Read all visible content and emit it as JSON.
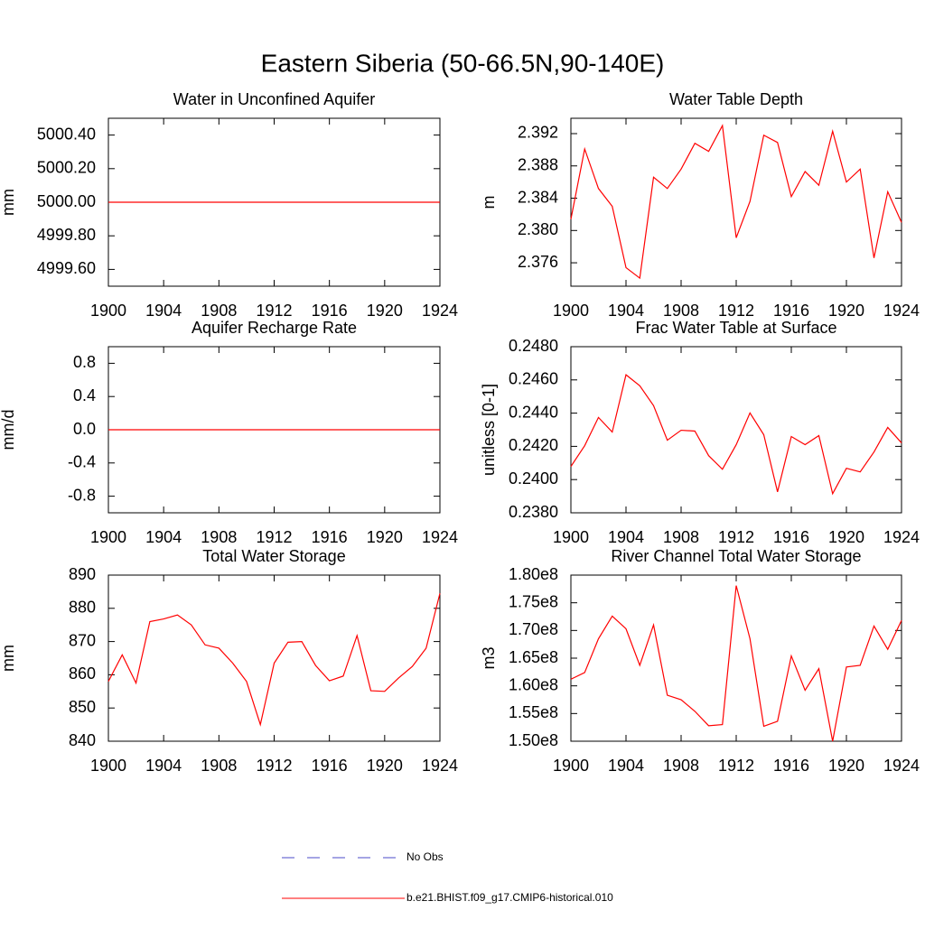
{
  "title": "Eastern Siberia (50-66.5N,90-140E)",
  "legend": [
    {
      "label": "No Obs",
      "color": "#4b4bc8",
      "dash": true
    },
    {
      "label": "b.e21.BHIST.f09_g17.CMIP6-historical.010",
      "color": "#ff0000",
      "dash": false
    }
  ],
  "chart_data": [
    {
      "type": "line",
      "title": "Water in Unconfined Aquifer",
      "ylabel": "mm",
      "x": [
        1900,
        1901,
        1902,
        1903,
        1904,
        1905,
        1906,
        1907,
        1908,
        1909,
        1910,
        1911,
        1912,
        1913,
        1914,
        1915,
        1916,
        1917,
        1918,
        1919,
        1920,
        1921,
        1922,
        1923,
        1924
      ],
      "series": [
        {
          "color": "#ff0000",
          "values": [
            5000,
            5000,
            5000,
            5000,
            5000,
            5000,
            5000,
            5000,
            5000,
            5000,
            5000,
            5000,
            5000,
            5000,
            5000,
            5000,
            5000,
            5000,
            5000,
            5000,
            5000,
            5000,
            5000,
            5000,
            5000
          ]
        }
      ],
      "xlim": [
        1900,
        1924
      ],
      "xticks": [
        1900,
        1904,
        1908,
        1912,
        1916,
        1920,
        1924
      ],
      "ylim": [
        4999.5,
        5000.5
      ],
      "yticks": [
        {
          "value": 4999.6,
          "label": "4999.60"
        },
        {
          "value": 4999.8,
          "label": "4999.80"
        },
        {
          "value": 5000,
          "label": "5000.00"
        },
        {
          "value": 5000.2,
          "label": "5000.20"
        },
        {
          "value": 5000.4,
          "label": "5000.40"
        }
      ]
    },
    {
      "type": "line",
      "title": "Water Table Depth",
      "ylabel": "m",
      "x": [
        1900,
        1901,
        1902,
        1903,
        1904,
        1905,
        1906,
        1907,
        1908,
        1909,
        1910,
        1911,
        1912,
        1913,
        1914,
        1915,
        1916,
        1917,
        1918,
        1919,
        1920,
        1921,
        1922,
        1923,
        1924
      ],
      "series": [
        {
          "color": "#ff0000",
          "values": [
            2.3814,
            2.3901,
            2.3852,
            2.383,
            2.3754,
            2.3741,
            2.3866,
            2.3852,
            2.3876,
            2.3908,
            2.3898,
            2.393,
            2.3791,
            2.3836,
            2.3918,
            2.3909,
            2.3842,
            2.3873,
            2.3856,
            2.3923,
            2.386,
            2.3876,
            2.3766,
            2.3848,
            2.381
          ]
        }
      ],
      "xlim": [
        1900,
        1924
      ],
      "xticks": [
        1900,
        1904,
        1908,
        1912,
        1916,
        1920,
        1924
      ],
      "ylim": [
        2.3731,
        2.3939
      ],
      "yticks": [
        {
          "value": 2.376,
          "label": "2.376"
        },
        {
          "value": 2.38,
          "label": "2.380"
        },
        {
          "value": 2.384,
          "label": "2.384"
        },
        {
          "value": 2.388,
          "label": "2.388"
        },
        {
          "value": 2.392,
          "label": "2.392"
        }
      ]
    },
    {
      "type": "line",
      "title": "Aquifer Recharge Rate",
      "ylabel": "mm/d",
      "x": [
        1900,
        1901,
        1902,
        1903,
        1904,
        1905,
        1906,
        1907,
        1908,
        1909,
        1910,
        1911,
        1912,
        1913,
        1914,
        1915,
        1916,
        1917,
        1918,
        1919,
        1920,
        1921,
        1922,
        1923,
        1924
      ],
      "series": [
        {
          "color": "#ff0000",
          "values": [
            0,
            0,
            0,
            0,
            0,
            0,
            0,
            0,
            0,
            0,
            0,
            0,
            0,
            0,
            0,
            0,
            0,
            0,
            0,
            0,
            0,
            0,
            0,
            0,
            0
          ]
        }
      ],
      "xlim": [
        1900,
        1924
      ],
      "xticks": [
        1900,
        1904,
        1908,
        1912,
        1916,
        1920,
        1924
      ],
      "ylim": [
        -1,
        1
      ],
      "yticks": [
        -0.8,
        -0.4,
        {
          "value": 0,
          "label": "0.0"
        },
        0.4,
        0.8
      ]
    },
    {
      "type": "line",
      "title": "Frac Water Table at Surface",
      "ylabel": "unitless [0-1]",
      "x": [
        1900,
        1901,
        1902,
        1903,
        1904,
        1905,
        1906,
        1907,
        1908,
        1909,
        1910,
        1911,
        1912,
        1913,
        1914,
        1915,
        1916,
        1917,
        1918,
        1919,
        1920,
        1921,
        1922,
        1923,
        1924
      ],
      "series": [
        {
          "color": "#ff0000",
          "values": [
            0.24079,
            0.24204,
            0.24374,
            0.24286,
            0.24631,
            0.24565,
            0.24445,
            0.24237,
            0.24297,
            0.24292,
            0.24144,
            0.24062,
            0.2421,
            0.24401,
            0.2427,
            0.23926,
            0.24259,
            0.2421,
            0.24265,
            0.23915,
            0.24068,
            0.24046,
            0.24166,
            0.24314,
            0.24221
          ]
        }
      ],
      "xlim": [
        1900,
        1924
      ],
      "xticks": [
        1900,
        1904,
        1908,
        1912,
        1916,
        1920,
        1924
      ],
      "ylim": [
        0.238,
        0.248
      ],
      "yticks": [
        {
          "value": 0.238,
          "label": "0.2380"
        },
        {
          "value": 0.24,
          "label": "0.2400"
        },
        {
          "value": 0.242,
          "label": "0.2420"
        },
        {
          "value": 0.244,
          "label": "0.2440"
        },
        {
          "value": 0.246,
          "label": "0.2460"
        },
        {
          "value": 0.248,
          "label": "0.2480"
        }
      ]
    },
    {
      "type": "line",
      "title": "Total Water Storage",
      "ylabel": "mm",
      "x": [
        1900,
        1901,
        1902,
        1903,
        1904,
        1905,
        1906,
        1907,
        1908,
        1909,
        1910,
        1911,
        1912,
        1913,
        1914,
        1915,
        1916,
        1917,
        1918,
        1919,
        1920,
        1921,
        1922,
        1923,
        1924
      ],
      "series": [
        {
          "color": "#ff0000",
          "values": [
            858,
            866,
            857.5,
            876,
            876.8,
            878,
            875,
            869,
            868,
            863.5,
            858,
            845,
            863.5,
            869.8,
            870,
            862.8,
            858.2,
            859.6,
            871.8,
            855.2,
            855,
            859,
            862.5,
            868,
            884.5
          ]
        }
      ],
      "xlim": [
        1900,
        1924
      ],
      "xticks": [
        1900,
        1904,
        1908,
        1912,
        1916,
        1920,
        1924
      ],
      "ylim": [
        840,
        890
      ],
      "yticks": [
        840,
        850,
        860,
        870,
        880,
        890
      ]
    },
    {
      "type": "line",
      "title": "River Channel Total Water Storage",
      "ylabel": "m3",
      "x": [
        1900,
        1901,
        1902,
        1903,
        1904,
        1905,
        1906,
        1907,
        1908,
        1909,
        1910,
        1911,
        1912,
        1913,
        1914,
        1915,
        1916,
        1917,
        1918,
        1919,
        1920,
        1921,
        1922,
        1923,
        1924
      ],
      "series": [
        {
          "color": "#ff0000",
          "values": [
            161200000,
            162400000,
            168500000,
            172600000,
            170300000,
            163700000,
            171000000,
            158300000,
            157500000,
            155400000,
            152800000,
            153000000,
            178100000,
            168500000,
            152700000,
            153600000,
            165400000,
            159200000,
            163100000,
            150000000,
            163400000,
            163700000,
            170800000,
            166600000,
            171800000
          ]
        }
      ],
      "xlim": [
        1900,
        1924
      ],
      "xticks": [
        1900,
        1904,
        1908,
        1912,
        1916,
        1920,
        1924
      ],
      "ylim": [
        150000000,
        180000000
      ],
      "yticks": [
        {
          "value": 150000000,
          "label": "1.50e8"
        },
        {
          "value": 155000000,
          "label": "1.55e8"
        },
        {
          "value": 160000000,
          "label": "1.60e8"
        },
        {
          "value": 165000000,
          "label": "1.65e8"
        },
        {
          "value": 170000000,
          "label": "1.70e8"
        },
        {
          "value": 175000000,
          "label": "1.75e8"
        },
        {
          "value": 180000000,
          "label": "1.80e8"
        }
      ]
    }
  ]
}
